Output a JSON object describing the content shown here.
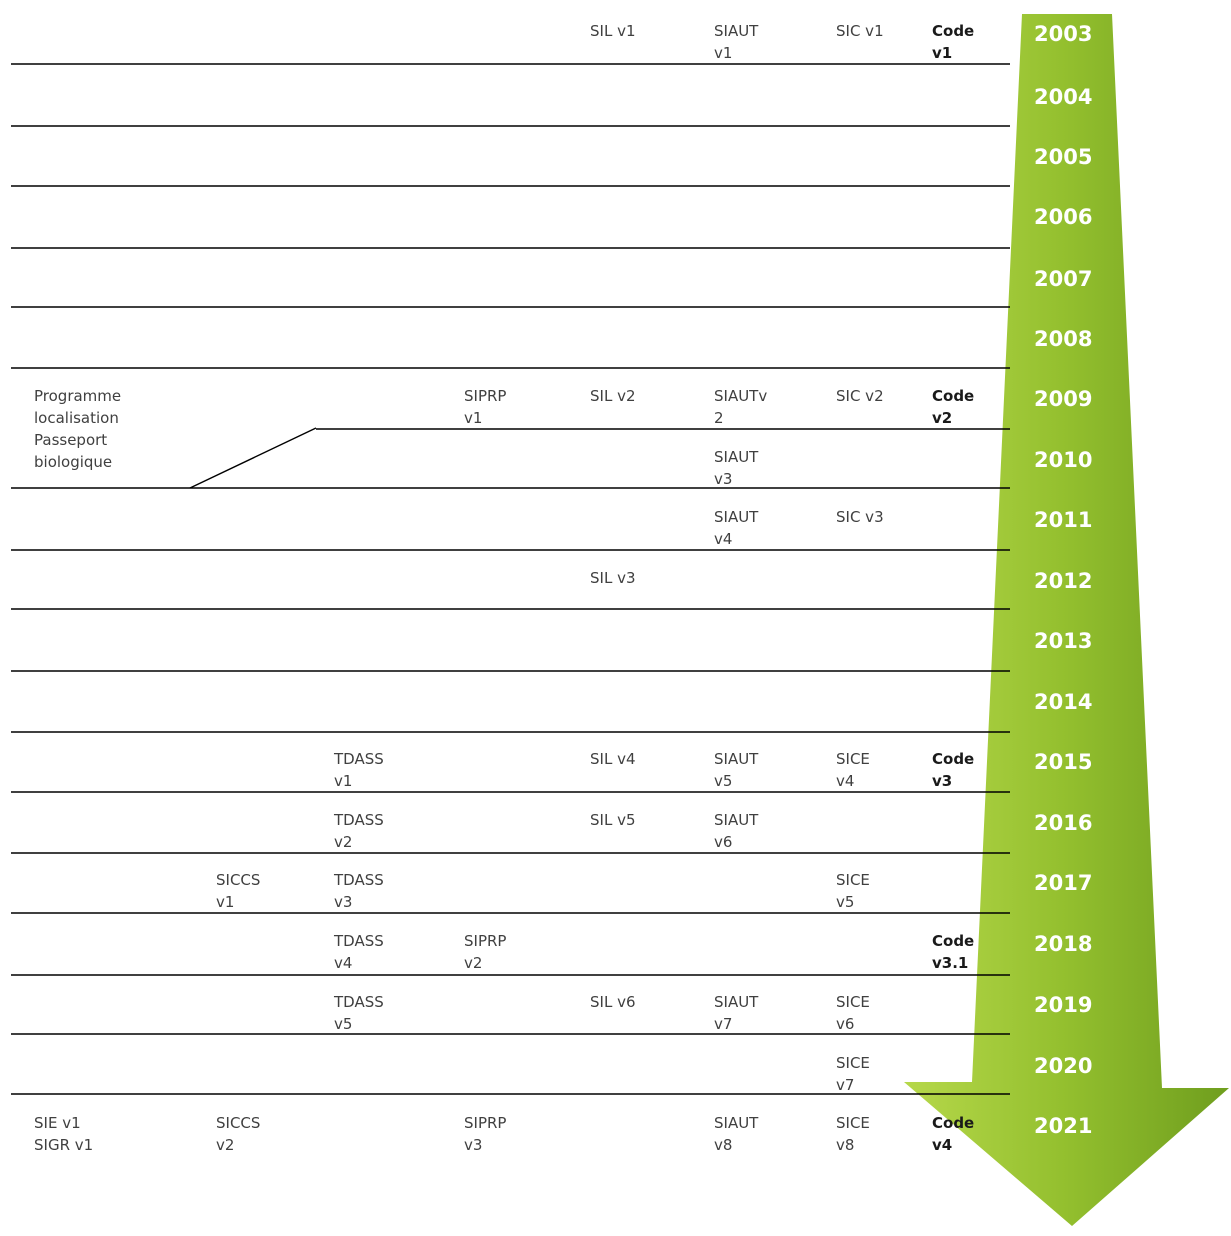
{
  "colors": {
    "arrow_light": "#b6d84a",
    "arrow_dark": "#6f9e1e",
    "rule": "#000000"
  },
  "timeline": {
    "rows": [
      {
        "year": "2003",
        "cells": [
          {
            "col": "c5",
            "text": "SIL v1"
          },
          {
            "col": "c6",
            "text": "SIAUT\nv1"
          },
          {
            "col": "c7",
            "text": "SIC v1"
          },
          {
            "col": "c8",
            "text": "Code\nv1",
            "bold": true
          }
        ]
      },
      {
        "year": "2004",
        "cells": []
      },
      {
        "year": "2005",
        "cells": []
      },
      {
        "year": "2006",
        "cells": []
      },
      {
        "year": "2007",
        "cells": []
      },
      {
        "year": "2008",
        "cells": []
      },
      {
        "year": "2009",
        "cells": [
          {
            "col": "c1",
            "text": "Programme\nlocalisation\nPasseport\nbiologique"
          },
          {
            "col": "c4",
            "text": "SIPRP\nv1"
          },
          {
            "col": "c5",
            "text": "SIL v2"
          },
          {
            "col": "c6",
            "text": "SIAUTv\n2"
          },
          {
            "col": "c7",
            "text": "SIC v2"
          },
          {
            "col": "c8",
            "text": "Code\nv2",
            "bold": true
          }
        ]
      },
      {
        "year": "2010",
        "cells": [
          {
            "col": "c6",
            "text": "SIAUT\nv3"
          }
        ]
      },
      {
        "year": "2011",
        "cells": [
          {
            "col": "c6",
            "text": "SIAUT\nv4"
          },
          {
            "col": "c7",
            "text": "SIC v3"
          }
        ]
      },
      {
        "year": "2012",
        "cells": [
          {
            "col": "c5",
            "text": "SIL v3"
          }
        ]
      },
      {
        "year": "2013",
        "cells": []
      },
      {
        "year": "2014",
        "cells": []
      },
      {
        "year": "2015",
        "cells": [
          {
            "col": "c3",
            "text": "TDASS\nv1"
          },
          {
            "col": "c5",
            "text": "SIL v4"
          },
          {
            "col": "c6",
            "text": "SIAUT\nv5"
          },
          {
            "col": "c7",
            "text": "SICE\nv4"
          },
          {
            "col": "c8",
            "text": "Code\nv3",
            "bold": true
          }
        ]
      },
      {
        "year": "2016",
        "cells": [
          {
            "col": "c3",
            "text": "TDASS\nv2"
          },
          {
            "col": "c5",
            "text": "SIL v5"
          },
          {
            "col": "c6",
            "text": "SIAUT\nv6"
          }
        ]
      },
      {
        "year": "2017",
        "cells": [
          {
            "col": "c2",
            "text": "SICCS\nv1"
          },
          {
            "col": "c3",
            "text": "TDASS\nv3"
          },
          {
            "col": "c7",
            "text": "SICE\nv5"
          }
        ]
      },
      {
        "year": "2018",
        "cells": [
          {
            "col": "c3",
            "text": "TDASS\nv4"
          },
          {
            "col": "c4",
            "text": "SIPRP\nv2"
          },
          {
            "col": "c8",
            "text": "Code\nv3.1",
            "bold": true
          }
        ]
      },
      {
        "year": "2019",
        "cells": [
          {
            "col": "c3",
            "text": "TDASS\nv5"
          },
          {
            "col": "c5",
            "text": "SIL v6"
          },
          {
            "col": "c6",
            "text": "SIAUT\nv7"
          },
          {
            "col": "c7",
            "text": "SICE\nv6"
          }
        ]
      },
      {
        "year": "2020",
        "cells": [
          {
            "col": "c7",
            "text": "SICE\nv7"
          }
        ]
      },
      {
        "year": "2021",
        "cells": [
          {
            "col": "c1",
            "text": "SIE v1\nSIGR v1"
          },
          {
            "col": "c2",
            "text": "SICCS\nv2"
          },
          {
            "col": "c4",
            "text": "SIPRP\nv3"
          },
          {
            "col": "c6",
            "text": "SIAUT\nv8"
          },
          {
            "col": "c7",
            "text": "SICE\nv8"
          },
          {
            "col": "c8",
            "text": "Code\nv4",
            "bold": true
          }
        ]
      }
    ]
  }
}
